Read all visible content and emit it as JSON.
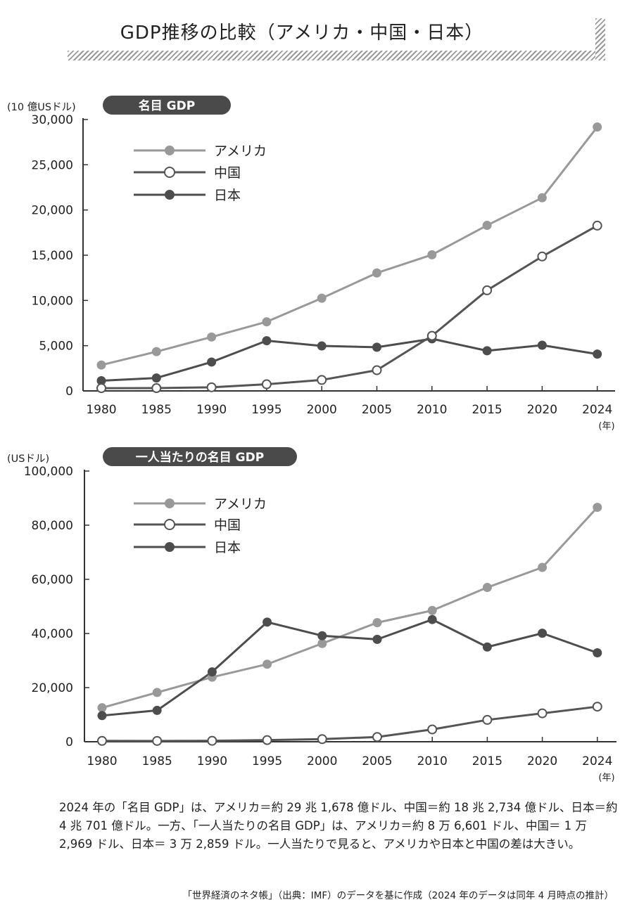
{
  "page": {
    "title": "GDP推移の比較（アメリカ・中国・日本）",
    "note": "2024 年の「名目 GDP」は、アメリカ＝約 29 兆 1,678 億ドル、中国＝約 18 兆 2,734 億ドル、日本＝約 4 兆 701 億ドル。一方、「一人当たりの名目 GDP」は、アメリカ＝約 8 万 6,601 ドル、中国＝ 1 万 2,969 ドル、日本＝ 3 万 2,859 ドル。一人当たりで見ると、アメリカや日本と中国の差は大きい。",
    "source": "「世界経済のネタ帳」（出典：IMF）のデータを基に作成（2024 年のデータは同年 4 月時点の推計）"
  },
  "colors": {
    "america": "#999999",
    "china": "#555555",
    "japan": "#4d4d4d",
    "axis": "#333333",
    "badge": "#4a4a4a"
  },
  "chart_data": [
    {
      "type": "line",
      "title": "名目 GDP",
      "ylabel": "(10 億USドル)",
      "xlabel": "(年)",
      "categories": [
        "1980",
        "1985",
        "1990",
        "1995",
        "2000",
        "2005",
        "2010",
        "2015",
        "2020",
        "2024"
      ],
      "ylim": [
        0,
        30000
      ],
      "yticks": [
        0,
        5000,
        10000,
        15000,
        20000,
        25000,
        30000
      ],
      "ytick_labels": [
        "0",
        "5,000",
        "10,000",
        "15,000",
        "20,000",
        "25,000",
        "30,000"
      ],
      "legend_position": "top-left",
      "series": [
        {
          "name": "アメリカ",
          "key": "america",
          "marker": "filled-gray",
          "values": [
            2860,
            4340,
            5960,
            7640,
            10250,
            13040,
            15050,
            18300,
            21350,
            29170
          ]
        },
        {
          "name": "中国",
          "key": "china",
          "marker": "open",
          "values": [
            305,
            310,
            400,
            735,
            1210,
            2290,
            6090,
            11120,
            14860,
            18270
          ]
        },
        {
          "name": "日本",
          "key": "japan",
          "marker": "filled-dark",
          "values": [
            1130,
            1430,
            3190,
            5550,
            4970,
            4830,
            5760,
            4440,
            5050,
            4070
          ]
        }
      ]
    },
    {
      "type": "line",
      "title": "一人当たりの名目 GDP",
      "ylabel": "(USドル)",
      "xlabel": "(年)",
      "categories": [
        "1980",
        "1985",
        "1990",
        "1995",
        "2000",
        "2005",
        "2010",
        "2015",
        "2020",
        "2024"
      ],
      "ylim": [
        0,
        100000
      ],
      "yticks": [
        0,
        20000,
        40000,
        60000,
        80000,
        100000
      ],
      "ytick_labels": [
        "0",
        "20,000",
        "40,000",
        "60,000",
        "80,000",
        "100,000"
      ],
      "legend_position": "top-left",
      "series": [
        {
          "name": "アメリカ",
          "key": "america",
          "marker": "filled-gray",
          "values": [
            12550,
            18200,
            23850,
            28650,
            36300,
            44000,
            48500,
            57000,
            64400,
            86600
          ]
        },
        {
          "name": "中国",
          "key": "china",
          "marker": "open",
          "values": [
            310,
            300,
            350,
            610,
            960,
            1760,
            4550,
            8070,
            10500,
            12970
          ]
        },
        {
          "name": "日本",
          "key": "japan",
          "marker": "filled-dark",
          "values": [
            9660,
            11580,
            25800,
            44200,
            39170,
            37820,
            45140,
            35000,
            40100,
            32860
          ]
        }
      ]
    }
  ]
}
